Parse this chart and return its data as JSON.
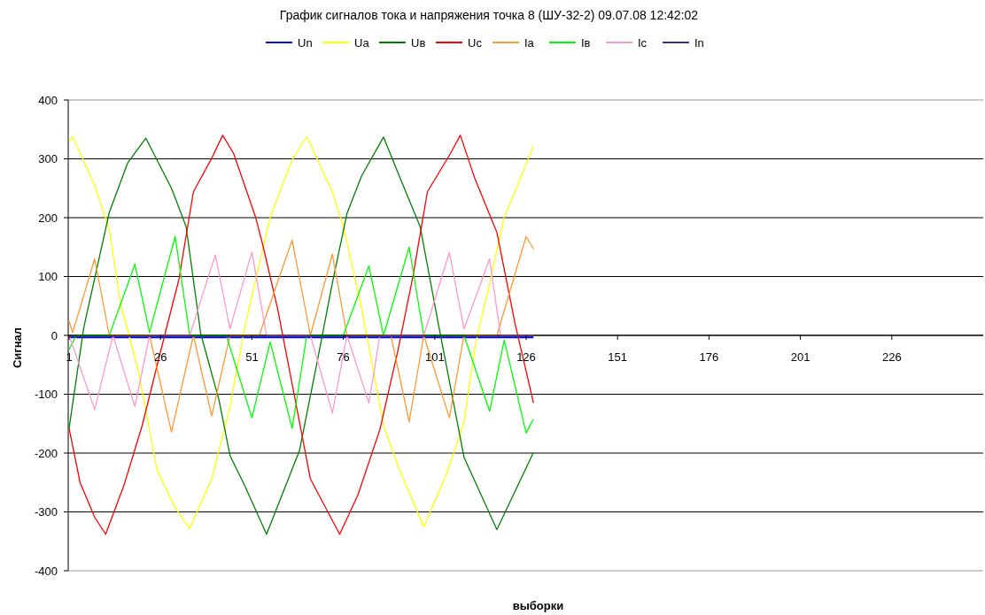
{
  "chart_data": {
    "type": "line",
    "title": "График сигналов тока и напряжения точка 8 (ШУ-32-2) 09.07.08 12:42:02",
    "xlabel": "выборки",
    "ylabel": "Сигнал",
    "xlim": [
      1,
      251
    ],
    "xticks": [
      1,
      26,
      51,
      76,
      101,
      126,
      151,
      176,
      201,
      226
    ],
    "ylim": [
      -400,
      400
    ],
    "yticks": [
      -400,
      -300,
      -200,
      -100,
      0,
      100,
      200,
      300,
      400
    ],
    "grid": "y",
    "legend": "top",
    "marker": "none",
    "line_style": "solid",
    "series": [
      {
        "name": "Un",
        "color": "#0000ff",
        "x": [
          1,
          128
        ],
        "values": [
          -4,
          -4
        ]
      },
      {
        "name": "Ua",
        "color": "#ffff00",
        "x": [
          1,
          2,
          8,
          12,
          15,
          20,
          25,
          30,
          34,
          40,
          45,
          49,
          56,
          62,
          66,
          73,
          76,
          81,
          87,
          91,
          98,
          104,
          109,
          112,
          116,
          120,
          124,
          128
        ],
        "values": [
          330,
          338,
          255,
          180,
          56,
          -62,
          -228,
          -293,
          -328,
          -244,
          -121,
          13,
          201,
          298,
          338,
          244,
          185,
          46,
          -153,
          -223,
          -325,
          -239,
          -148,
          -19,
          89,
          201,
          260,
          322
        ]
      },
      {
        "name": "Uв",
        "color": "#008000",
        "x": [
          1,
          5,
          12,
          17,
          22,
          29,
          33,
          37,
          42,
          45,
          49,
          55,
          64,
          69,
          73,
          77,
          81,
          87,
          92,
          97,
          102,
          109,
          118,
          128
        ],
        "values": [
          -158,
          13,
          209,
          293,
          335,
          250,
          185,
          3,
          -110,
          -204,
          -255,
          -338,
          -196,
          -40,
          89,
          207,
          271,
          337,
          260,
          185,
          19,
          -207,
          -330,
          -199
        ]
      },
      {
        "name": "Uc",
        "color": "#ff0000",
        "x": [
          1,
          4,
          8,
          11,
          16,
          21,
          27,
          31,
          35,
          40,
          43,
          46,
          52,
          54,
          58,
          63,
          67,
          75,
          80,
          86,
          91,
          95,
          99,
          105,
          108,
          112,
          118,
          123,
          128
        ],
        "values": [
          -158,
          -250,
          -309,
          -338,
          -255,
          -153,
          -3,
          94,
          244,
          301,
          340,
          309,
          201,
          153,
          46,
          -115,
          -244,
          -338,
          -271,
          -160,
          -24,
          99,
          244,
          306,
          340,
          266,
          175,
          19,
          -115
        ]
      },
      {
        "name": "Ia",
        "color": "#ff9933",
        "x": [
          1,
          2,
          8,
          12,
          19,
          23,
          29,
          35,
          40,
          45,
          49,
          53,
          62,
          67,
          73,
          77,
          82,
          89,
          94,
          98,
          105,
          109,
          118,
          126,
          128
        ],
        "values": [
          24,
          5,
          130,
          0,
          0,
          0,
          -164,
          0,
          -137,
          0,
          0,
          0,
          162,
          0,
          138,
          0,
          0,
          0,
          -147,
          0,
          -140,
          0,
          0,
          168,
          147
        ]
      },
      {
        "name": "Iв",
        "color": "#00ff00",
        "x": [
          1,
          3,
          12,
          19,
          23,
          30,
          34,
          44,
          51,
          56,
          62,
          66,
          76,
          83,
          87,
          94,
          98,
          109,
          116,
          120,
          126,
          128
        ],
        "values": [
          -24,
          0,
          0,
          121,
          5,
          168,
          0,
          0,
          -140,
          -11,
          -158,
          0,
          0,
          118,
          0,
          150,
          0,
          0,
          -129,
          -8,
          -166,
          -142
        ]
      },
      {
        "name": "Ic",
        "color": "#ff99cc",
        "x": [
          1,
          8,
          13,
          19,
          23,
          34,
          41,
          45,
          51,
          55,
          67,
          73,
          77,
          83,
          86,
          98,
          105,
          109,
          116,
          119,
          128
        ],
        "values": [
          0,
          -126,
          0,
          -121,
          0,
          0,
          137,
          11,
          142,
          0,
          0,
          -132,
          0,
          -115,
          0,
          0,
          141,
          11,
          130,
          0,
          0
        ]
      },
      {
        "name": "In",
        "color": "#333399",
        "x": [
          1,
          128
        ],
        "values": [
          -2,
          -2
        ]
      }
    ]
  }
}
